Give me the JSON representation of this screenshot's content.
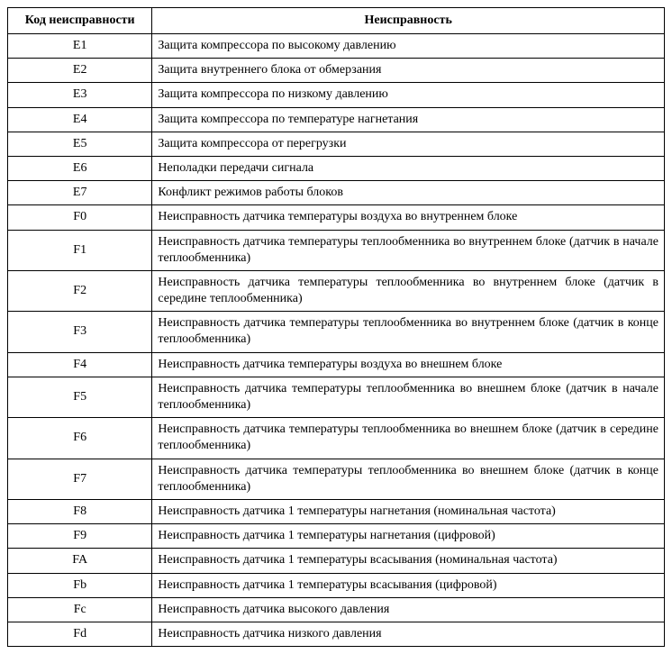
{
  "table": {
    "columns": [
      {
        "key": "code",
        "label": "Код неисправности",
        "width_pct": 22,
        "align": "center"
      },
      {
        "key": "desc",
        "label": "Неисправность",
        "width_pct": 78,
        "align": "left"
      }
    ],
    "header_fontsize_pt": 11,
    "cell_fontsize_pt": 11,
    "border_color": "#000000",
    "background_color": "#ffffff",
    "text_color": "#000000",
    "font_family": "Times New Roman",
    "rows": [
      {
        "code": "E1",
        "desc": "Защита компрессора по высокому давлению",
        "justified": false
      },
      {
        "code": "E2",
        "desc": "Защита внутреннего блока от обмерзания",
        "justified": false
      },
      {
        "code": "E3",
        "desc": "Защита компрессора по низкому давлению",
        "justified": false
      },
      {
        "code": "E4",
        "desc": "Защита компрессора по температуре нагнетания",
        "justified": false
      },
      {
        "code": "E5",
        "desc": "Защита компрессора от перегрузки",
        "justified": false
      },
      {
        "code": "E6",
        "desc": "Неполадки передачи сигнала",
        "justified": false
      },
      {
        "code": "E7",
        "desc": "Конфликт режимов работы блоков",
        "justified": false
      },
      {
        "code": "F0",
        "desc": "Неисправность датчика температуры воздуха во внутреннем блоке",
        "justified": false
      },
      {
        "code": "F1",
        "desc": "Неисправность датчика температуры теплообменника во внутреннем блоке (датчик в начале теплообменника)",
        "justified": true
      },
      {
        "code": "F2",
        "desc": "Неисправность датчика температуры теплообменника во внутреннем блоке (датчик в середине теплообменника)",
        "justified": true
      },
      {
        "code": "F3",
        "desc": "Неисправность датчика температуры теплообменника во внутреннем блоке (датчик в конце теплообменника)",
        "justified": true
      },
      {
        "code": "F4",
        "desc": "Неисправность датчика температуры воздуха во внешнем блоке",
        "justified": false
      },
      {
        "code": "F5",
        "desc": "Неисправность датчика температуры теплообменника во внешнем блоке (датчик в начале теплообменника)",
        "justified": true
      },
      {
        "code": "F6",
        "desc": "Неисправность датчика температуры теплообменника во внешнем блоке (датчик в середине теплообменника)",
        "justified": true
      },
      {
        "code": "F7",
        "desc": "Неисправность датчика температуры теплообменника во внешнем блоке (датчик в конце теплообменника)",
        "justified": true
      },
      {
        "code": "F8",
        "desc": "Неисправность датчика 1 температуры нагнетания (номинальная частота)",
        "justified": false
      },
      {
        "code": "F9",
        "desc": "Неисправность датчика 1 температуры нагнетания (цифровой)",
        "justified": false
      },
      {
        "code": "FA",
        "desc": "Неисправность датчика 1 температуры всасывания (номинальная частота)",
        "justified": false
      },
      {
        "code": "Fb",
        "desc": "Неисправность датчика 1 температуры всасывания (цифровой)",
        "justified": false
      },
      {
        "code": "Fc",
        "desc": "Неисправность датчика высокого давления",
        "justified": false
      },
      {
        "code": "Fd",
        "desc": "Неисправность датчика низкого давления",
        "justified": false
      }
    ]
  }
}
